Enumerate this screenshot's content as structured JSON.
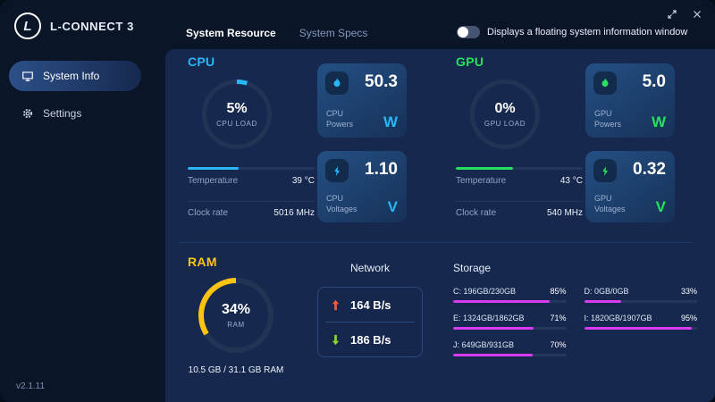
{
  "colors": {
    "cpu": "#29b6f6",
    "gpu": "#27e060",
    "ram": "#ffc413",
    "storage": "#d93cf0",
    "net_up": "#ff5a36",
    "net_down": "#86d926",
    "track": "#223454"
  },
  "app": {
    "title": "L-CONNECT 3",
    "version": "v2.1.11",
    "logo_letter": "L"
  },
  "sidebar": {
    "items": [
      {
        "label": "System Info"
      },
      {
        "label": "Settings"
      }
    ]
  },
  "topbar": {
    "tabs": [
      {
        "label": "System Resource"
      },
      {
        "label": "System Specs"
      }
    ],
    "toggle_label": "Displays a floating system information window"
  },
  "cpu": {
    "title": "CPU",
    "load": {
      "pct": "5%",
      "value": 5,
      "label": "CPU LOAD"
    },
    "power": {
      "line1": "CPU",
      "line2": "Powers",
      "value": "50.3",
      "unit": "W"
    },
    "temperature": {
      "label": "Temperature",
      "value": "39 °C",
      "fill": 40
    },
    "clock": {
      "label": "Clock rate",
      "value": "5016 MHz"
    },
    "voltage": {
      "line1": "CPU",
      "line2": "Voltages",
      "value": "1.10",
      "unit": "V"
    }
  },
  "gpu": {
    "title": "GPU",
    "load": {
      "pct": "0%",
      "value": 0,
      "label": "GPU LOAD"
    },
    "power": {
      "line1": "GPU",
      "line2": "Powers",
      "value": "5.0",
      "unit": "W"
    },
    "temperature": {
      "label": "Temperature",
      "value": "43 °C",
      "fill": 45
    },
    "clock": {
      "label": "Clock rate",
      "value": "540 MHz"
    },
    "voltage": {
      "line1": "GPU",
      "line2": "Voltages",
      "value": "0.32",
      "unit": "V"
    }
  },
  "ram": {
    "title": "RAM",
    "load": {
      "pct": "34%",
      "value": 34,
      "label": "RAM"
    },
    "detail": "10.5 GB / 31.1 GB RAM"
  },
  "network": {
    "title": "Network",
    "up": "164 B/s",
    "down": "186 B/s"
  },
  "storage": {
    "title": "Storage",
    "drives": [
      {
        "label": "C: 196GB/230GB",
        "pct": "85%",
        "fill": 85
      },
      {
        "label": "D: 0GB/0GB",
        "pct": "33%",
        "fill": 33
      },
      {
        "label": "E: 1324GB/1862GB",
        "pct": "71%",
        "fill": 71
      },
      {
        "label": "I: 1820GB/1907GB",
        "pct": "95%",
        "fill": 95
      },
      {
        "label": "J: 649GB/931GB",
        "pct": "70%",
        "fill": 70
      }
    ]
  }
}
